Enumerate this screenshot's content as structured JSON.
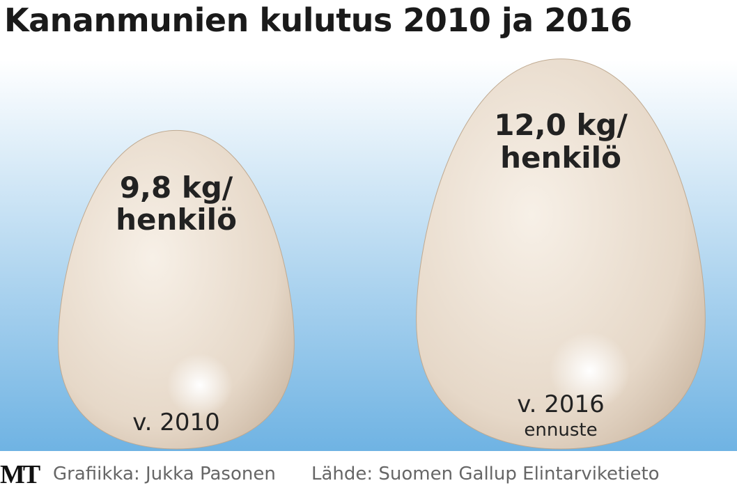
{
  "chart_data": {
    "type": "pictogram",
    "title": "Kananmunien kulutus 2010 ja 2016",
    "categories": [
      "v. 2010",
      "v. 2016"
    ],
    "notes": [
      null,
      "ennuste"
    ],
    "values": [
      9.8,
      12.0
    ],
    "value_labels": [
      "9,8 kg/ henkilö",
      "12,0 kg/ henkilö"
    ],
    "color": "#e8dccd",
    "logo": "MT",
    "credit": "Grafiikka: Jukka Pasonen",
    "source": "Lähde: Suomen Gallup Elintarviketieto"
  }
}
